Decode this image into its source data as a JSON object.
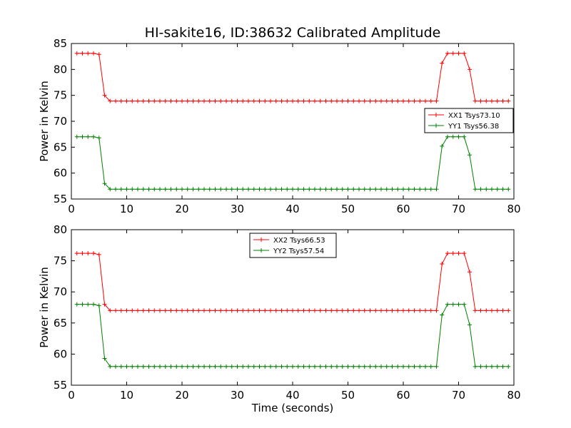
{
  "figure": {
    "title": "HI-sakite16, ID:38632 Calibrated Amplitude"
  },
  "chart_data": [
    {
      "type": "line",
      "title": "HI-sakite16, ID:38632 Calibrated Amplitude",
      "xlabel": "",
      "ylabel": "Power in Kelvin",
      "xlim": [
        0,
        80
      ],
      "ylim": [
        55,
        85
      ],
      "xticks": [
        0,
        10,
        20,
        30,
        40,
        50,
        60,
        70,
        80
      ],
      "yticks": [
        55,
        60,
        65,
        70,
        75,
        80,
        85
      ],
      "legend_position": "center-right",
      "grid": false,
      "series": [
        {
          "name": "XX1 Tsys73.10",
          "color": "#ff0000",
          "high": 83.1,
          "low": 73.9,
          "trans_down": 75.0,
          "trans_up": 81.2,
          "trans_fall": 80.0
        },
        {
          "name": "YY1 Tsys56.38",
          "color": "#008000",
          "high": 67.0,
          "low": 56.9,
          "trans_down": 58.0,
          "trans_up": 65.2,
          "trans_fall": 63.5
        }
      ]
    },
    {
      "type": "line",
      "title": "",
      "xlabel": "Time (seconds)",
      "ylabel": "Power in Kelvin",
      "xlim": [
        0,
        80
      ],
      "ylim": [
        55,
        80
      ],
      "xticks": [
        0,
        10,
        20,
        30,
        40,
        50,
        60,
        70,
        80
      ],
      "yticks": [
        55,
        60,
        65,
        70,
        75,
        80
      ],
      "legend_position": "upper-center",
      "grid": false,
      "series": [
        {
          "name": "XX2 Tsys66.53",
          "color": "#ff0000",
          "high": 76.2,
          "low": 67.0,
          "trans_down": 68.0,
          "trans_up": 74.5,
          "trans_fall": 73.2
        },
        {
          "name": "YY2 Tsys57.54",
          "color": "#008000",
          "high": 68.0,
          "low": 58.0,
          "trans_down": 59.3,
          "trans_up": 66.3,
          "trans_fall": 64.7
        }
      ]
    }
  ]
}
